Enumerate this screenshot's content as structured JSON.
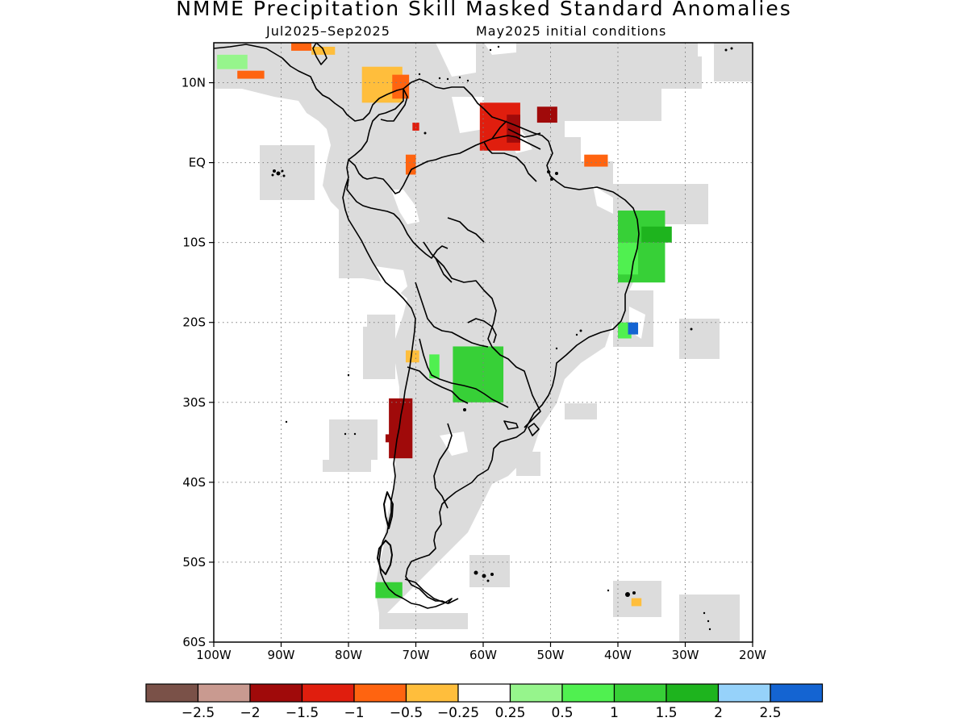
{
  "title": "NMME Precipitation Skill Masked Standard Anomalies",
  "subtitle_period": "Jul2025–Sep2025",
  "subtitle_ic": "May2025 initial conditions",
  "map": {
    "lon_range": [
      -100,
      -20
    ],
    "lat_range": [
      -60,
      15
    ],
    "lon_ticks": [
      {
        "value": -100,
        "label": "100W"
      },
      {
        "value": -90,
        "label": "90W"
      },
      {
        "value": -80,
        "label": "80W"
      },
      {
        "value": -70,
        "label": "70W"
      },
      {
        "value": -60,
        "label": "60W"
      },
      {
        "value": -50,
        "label": "50W"
      },
      {
        "value": -40,
        "label": "40W"
      },
      {
        "value": -30,
        "label": "30W"
      },
      {
        "value": -20,
        "label": "20W"
      }
    ],
    "lat_ticks": [
      {
        "value": 10,
        "label": "10N"
      },
      {
        "value": 0,
        "label": "EQ"
      },
      {
        "value": -10,
        "label": "10S"
      },
      {
        "value": -20,
        "label": "20S"
      },
      {
        "value": -30,
        "label": "30S"
      },
      {
        "value": -40,
        "label": "40S"
      },
      {
        "value": -50,
        "label": "50S"
      },
      {
        "value": -60,
        "label": "60S"
      }
    ],
    "grid": "dotted",
    "mask_color": "#dcdcdc",
    "coastline_color": "#000000"
  },
  "colorbar": {
    "colors": [
      "#7a5148",
      "#c99a90",
      "#a00a0a",
      "#e01e0e",
      "#ff6410",
      "#ffbe3c",
      "#ffffff",
      "#96f58c",
      "#50f050",
      "#37d037",
      "#1eb41e",
      "#96d2fa",
      "#1464d2"
    ],
    "labels": [
      "−2.5",
      "−2",
      "−1.5",
      "−1",
      "−0.5",
      "−0.25",
      "0.25",
      "0.5",
      "1",
      "1.5",
      "2",
      "2.5"
    ]
  },
  "anomaly_patches": [
    {
      "region": "caribbean-w",
      "lon": [
        -99.5,
        -95.0
      ],
      "lat": [
        13.5,
        11.7
      ],
      "color": "#96f58c"
    },
    {
      "region": "central-america-pac",
      "lon": [
        -96.5,
        -92.5
      ],
      "lat": [
        11.5,
        10.5
      ],
      "color": "#ff6410"
    },
    {
      "region": "central-america-n",
      "lon": [
        -88.5,
        -85.5
      ],
      "lat": [
        15.0,
        14.0
      ],
      "color": "#ff6410"
    },
    {
      "region": "central-america-n2",
      "lon": [
        -85.5,
        -82.0
      ],
      "lat": [
        14.5,
        13.5
      ],
      "color": "#ffbe3c"
    },
    {
      "region": "colombia-n",
      "lon": [
        -78.0,
        -72.0
      ],
      "lat": [
        12.0,
        7.5
      ],
      "color": "#ffbe3c"
    },
    {
      "region": "colombia-n2",
      "lon": [
        -73.5,
        -71.0
      ],
      "lat": [
        11.0,
        8.0
      ],
      "color": "#ff6410"
    },
    {
      "region": "colombia-e",
      "lon": [
        -70.5,
        -69.5
      ],
      "lat": [
        5.0,
        4.0
      ],
      "color": "#e01e0e"
    },
    {
      "region": "venezuela-e-guyana",
      "lon": [
        -60.5,
        -54.5
      ],
      "lat": [
        7.5,
        1.5
      ],
      "color": "#e01e0e"
    },
    {
      "region": "suriname",
      "lon": [
        -56.5,
        -54.5
      ],
      "lat": [
        6.0,
        2.5
      ],
      "color": "#a00a0a"
    },
    {
      "region": "french-guiana",
      "lon": [
        -52.0,
        -49.0
      ],
      "lat": [
        7.0,
        5.0
      ],
      "color": "#a00a0a"
    },
    {
      "region": "amapa-coast",
      "lon": [
        -45.0,
        -41.5
      ],
      "lat": [
        1.0,
        -0.5
      ],
      "color": "#ff6410"
    },
    {
      "region": "ecuador",
      "lon": [
        -71.5,
        -70.0
      ],
      "lat": [
        1.0,
        -1.5
      ],
      "color": "#ff6410"
    },
    {
      "region": "brazil-ne",
      "lon": [
        -40.0,
        -33.0
      ],
      "lat": [
        -6.0,
        -15.0
      ],
      "color": "#37d037"
    },
    {
      "region": "brazil-ne2",
      "lon": [
        -36.5,
        -32.0
      ],
      "lat": [
        -8.0,
        -10.0
      ],
      "color": "#1eb41e"
    },
    {
      "region": "brazil-ne3",
      "lon": [
        -40.0,
        -37.0
      ],
      "lat": [
        -10.0,
        -14.0
      ],
      "color": "#50f050"
    },
    {
      "region": "brazil-se",
      "lon": [
        -40.0,
        -38.0
      ],
      "lat": [
        -20.0,
        -22.0
      ],
      "color": "#50f050"
    },
    {
      "region": "brazil-se-b",
      "lon": [
        -38.5,
        -37.0
      ],
      "lat": [
        -20.0,
        -21.5
      ],
      "color": "#1464d2"
    },
    {
      "region": "paraguay-argentina",
      "lon": [
        -64.5,
        -57.0
      ],
      "lat": [
        -23.0,
        -30.0
      ],
      "color": "#37d037"
    },
    {
      "region": "argentina-nw",
      "lon": [
        -68.0,
        -66.5
      ],
      "lat": [
        -24.0,
        -27.0
      ],
      "color": "#50f050"
    },
    {
      "region": "chile-central",
      "lon": [
        -74.0,
        -70.5
      ],
      "lat": [
        -29.5,
        -37.0
      ],
      "color": "#a00a0a"
    },
    {
      "region": "chile-central2",
      "lon": [
        -74.5,
        -72.0
      ],
      "lat": [
        -34.0,
        -35.0
      ],
      "color": "#a00a0a"
    },
    {
      "region": "chile-n",
      "lon": [
        -71.5,
        -69.5
      ],
      "lat": [
        -23.5,
        -25.0
      ],
      "color": "#ffbe3c"
    },
    {
      "region": "tierra-del-fuego-w",
      "lon": [
        -76.0,
        -72.0
      ],
      "lat": [
        -52.5,
        -54.5
      ],
      "color": "#37d037"
    },
    {
      "region": "south-georgia",
      "lon": [
        -38.0,
        -36.5
      ],
      "lat": [
        -54.5,
        -55.5
      ],
      "color": "#ffbe3c"
    }
  ]
}
